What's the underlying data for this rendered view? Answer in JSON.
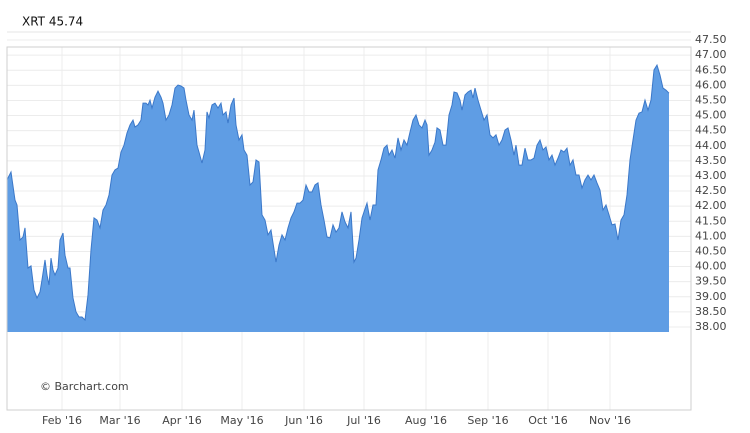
{
  "chart_data": {
    "type": "area",
    "title": "XRT 45.74",
    "annotation": "© Barchart.com",
    "color": "#5f9de4",
    "line_color": "#3b78c9",
    "grid": true,
    "y_axis_side": "right",
    "x": [
      4.5,
      6.5,
      8.5,
      9.5,
      11,
      12.5,
      13.5,
      15,
      16.5,
      18,
      19.5,
      21,
      22,
      23.5,
      24.5,
      25.5,
      26.5,
      27.5,
      28.5,
      30,
      31,
      32.5,
      33.5,
      35,
      36,
      37.5,
      39,
      40.5,
      42,
      43.5,
      45,
      46.5,
      48,
      49.5,
      51,
      52.5,
      54,
      55.5,
      57,
      58.5,
      60,
      61.5,
      63,
      64.5,
      66,
      67.5,
      68.5,
      70,
      71.5,
      72.5,
      74,
      75,
      76,
      77,
      78.5,
      80,
      81.5,
      82.5,
      84,
      85.5,
      87,
      88.5,
      90,
      91.5,
      93,
      94,
      95.5,
      97,
      98,
      99.5,
      100.5,
      102,
      103.5,
      104.5,
      105.5,
      107,
      108.5,
      110,
      111.5,
      112.5,
      114,
      115,
      116.5,
      118,
      119,
      120.5,
      122,
      123,
      124.5,
      126,
      127.5,
      129,
      130.5,
      132,
      133.5,
      135,
      136.5,
      137.5,
      139,
      140.5,
      142,
      143.5,
      145,
      146.5,
      148,
      149.5,
      151,
      152.5,
      154,
      155.5,
      157,
      158.5,
      160,
      161.5,
      163,
      164.5,
      166,
      167.5,
      169,
      170.5,
      172,
      173.5,
      175,
      176.5,
      178,
      179,
      180.5,
      182,
      183,
      184.5,
      186,
      187.5,
      189,
      190,
      191.5,
      193,
      194.5,
      195.5,
      197,
      198.5,
      200,
      201.5,
      203,
      204.5,
      206,
      207.5,
      209,
      210.5,
      212,
      213.5,
      214.5,
      215.5,
      217,
      218.5,
      219.5,
      221,
      222.5,
      224,
      225.5,
      227,
      228,
      229.5,
      231,
      232,
      233.5,
      235,
      236.5,
      237.5,
      238.5,
      240,
      241.5,
      243,
      244.5,
      246,
      247.5,
      249,
      250.5,
      252,
      253.5,
      255,
      256.5,
      258,
      259,
      260.5,
      262,
      263.5,
      265,
      266.5,
      268,
      269.5,
      271,
      272.5,
      274,
      275.5,
      277,
      278.5,
      280,
      281.5,
      283,
      284.5,
      286,
      287.5,
      289,
      290.5,
      292,
      293.5,
      295,
      296.5,
      298,
      299.5,
      301,
      302.5,
      304,
      305.5,
      307,
      308.5,
      310,
      311.5,
      313,
      314.5,
      316,
      317.5,
      319,
      320.5,
      322,
      323.5,
      325,
      326.5,
      328,
      329.5,
      331,
      332.5,
      334,
      335.5
    ],
    "values": [
      42.87,
      43.13,
      42.2,
      42.04,
      40.88,
      40.98,
      41.28,
      39.95,
      40.02,
      39.22,
      38.96,
      39.16,
      39.56,
      40.22,
      39.72,
      39.39,
      40.28,
      39.89,
      39.72,
      39.95,
      40.88,
      41.11,
      40.38,
      39.95,
      39.95,
      38.96,
      38.5,
      38.33,
      38.33,
      38.23,
      39.06,
      40.55,
      41.61,
      41.54,
      41.28,
      41.87,
      42.04,
      42.37,
      43.03,
      43.2,
      43.26,
      43.79,
      44.02,
      44.42,
      44.69,
      44.85,
      44.62,
      44.69,
      44.85,
      45.41,
      45.41,
      45.35,
      45.51,
      45.25,
      45.61,
      45.81,
      45.61,
      45.41,
      44.85,
      45.02,
      45.35,
      45.91,
      46.01,
      45.98,
      45.91,
      45.51,
      45.02,
      44.85,
      45.18,
      44.02,
      43.79,
      43.43,
      43.86,
      45.12,
      44.92,
      45.35,
      45.41,
      45.25,
      45.41,
      45.02,
      45.12,
      44.75,
      45.35,
      45.58,
      44.69,
      44.19,
      44.36,
      43.86,
      43.69,
      42.7,
      42.8,
      43.53,
      43.46,
      41.71,
      41.54,
      41.05,
      41.21,
      40.78,
      40.15,
      40.71,
      41.05,
      40.88,
      41.28,
      41.61,
      41.81,
      42.1,
      42.1,
      42.2,
      42.7,
      42.47,
      42.47,
      42.7,
      42.77,
      42.04,
      41.54,
      40.98,
      40.95,
      41.38,
      41.14,
      41.28,
      41.81,
      41.48,
      41.28,
      41.81,
      40.15,
      40.28,
      40.88,
      41.61,
      41.81,
      42.1,
      41.54,
      42.04,
      42.04,
      43.2,
      43.53,
      43.92,
      44.02,
      43.69,
      43.86,
      43.59,
      44.26,
      43.86,
      44.19,
      44.02,
      44.45,
      44.85,
      45.02,
      44.69,
      44.59,
      44.85,
      44.69,
      43.69,
      43.86,
      44.12,
      44.59,
      44.52,
      44.02,
      44.02,
      45.02,
      45.35,
      45.78,
      45.75,
      45.51,
      45.18,
      45.68,
      45.78,
      45.84,
      45.58,
      45.91,
      45.51,
      45.18,
      44.85,
      45.02,
      44.36,
      44.26,
      44.36,
      44.02,
      44.19,
      44.52,
      44.59,
      44.19,
      43.69,
      44.02,
      43.36,
      43.36,
      43.92,
      43.53,
      43.53,
      43.59,
      44.02,
      44.19,
      43.86,
      43.96,
      43.53,
      43.69,
      43.36,
      43.59,
      43.86,
      43.79,
      43.92,
      43.36,
      43.53,
      43.03,
      43.03,
      42.6,
      42.87,
      43.03,
      42.87,
      43.03,
      42.77,
      42.53,
      41.87,
      42.04,
      41.71,
      41.38,
      41.41,
      40.88,
      41.54,
      41.71,
      42.37,
      43.53,
      44.19,
      44.85,
      45.08,
      45.12,
      45.51,
      45.18,
      45.51,
      46.51,
      46.67,
      46.34,
      45.91,
      45.84,
      45.74
    ],
    "xlim": [
      4.5,
      346.5
    ],
    "xticks": [
      {
        "value": 32,
        "label": "Feb '16"
      },
      {
        "value": 61,
        "label": "Mar '16"
      },
      {
        "value": 92,
        "label": "Apr '16"
      },
      {
        "value": 122,
        "label": "May '16"
      },
      {
        "value": 153,
        "label": "Jun '16"
      },
      {
        "value": 183,
        "label": "Jul '16"
      },
      {
        "value": 214,
        "label": "Aug '16"
      },
      {
        "value": 245,
        "label": "Sep '16"
      },
      {
        "value": 275,
        "label": "Oct '16"
      },
      {
        "value": 306,
        "label": "Nov '16"
      }
    ],
    "ylim": [
      35.25,
      47.27
    ],
    "yticks": [
      {
        "value": 38,
        "label": "38.00"
      },
      {
        "value": 38.5,
        "label": "38.50"
      },
      {
        "value": 39,
        "label": "39.00"
      },
      {
        "value": 39.5,
        "label": "39.50"
      },
      {
        "value": 40,
        "label": "40.00"
      },
      {
        "value": 40.5,
        "label": "40.50"
      },
      {
        "value": 41,
        "label": "41.00"
      },
      {
        "value": 41.5,
        "label": "41.50"
      },
      {
        "value": 42,
        "label": "42.00"
      },
      {
        "value": 42.5,
        "label": "42.50"
      },
      {
        "value": 43,
        "label": "43.00"
      },
      {
        "value": 43.5,
        "label": "43.50"
      },
      {
        "value": 44,
        "label": "44.00"
      },
      {
        "value": 44.5,
        "label": "44.50"
      },
      {
        "value": 45,
        "label": "45.00"
      },
      {
        "value": 45.5,
        "label": "45.50"
      },
      {
        "value": 46,
        "label": "46.00"
      },
      {
        "value": 46.5,
        "label": "46.50"
      },
      {
        "value": 47,
        "label": "47.00"
      },
      {
        "value": 47.5,
        "label": "47.50"
      }
    ]
  }
}
